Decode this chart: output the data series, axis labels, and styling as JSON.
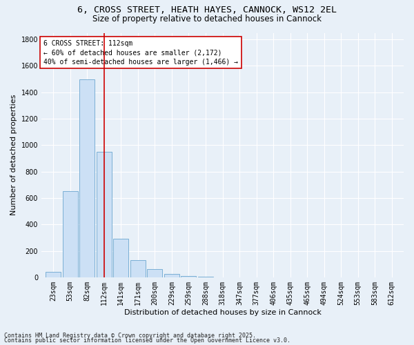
{
  "title1": "6, CROSS STREET, HEATH HAYES, CANNOCK, WS12 2EL",
  "title2": "Size of property relative to detached houses in Cannock",
  "xlabel": "Distribution of detached houses by size in Cannock",
  "ylabel": "Number of detached properties",
  "categories": [
    "23sqm",
    "53sqm",
    "82sqm",
    "112sqm",
    "141sqm",
    "171sqm",
    "200sqm",
    "229sqm",
    "259sqm",
    "288sqm",
    "318sqm",
    "347sqm",
    "377sqm",
    "406sqm",
    "435sqm",
    "465sqm",
    "494sqm",
    "524sqm",
    "553sqm",
    "583sqm",
    "612sqm"
  ],
  "values": [
    40,
    650,
    1500,
    950,
    290,
    130,
    60,
    25,
    10,
    5,
    0,
    0,
    0,
    0,
    0,
    0,
    0,
    0,
    0,
    0,
    0
  ],
  "bar_color": "#cce0f5",
  "bar_edge_color": "#7aafd4",
  "vline_x_index": 3,
  "vline_color": "#cc0000",
  "annotation_line1": "6 CROSS STREET: 112sqm",
  "annotation_line2": "← 60% of detached houses are smaller (2,172)",
  "annotation_line3": "40% of semi-detached houses are larger (1,466) →",
  "annotation_box_color": "#ffffff",
  "annotation_box_edge": "#cc0000",
  "ylim": [
    0,
    1850
  ],
  "yticks": [
    0,
    200,
    400,
    600,
    800,
    1000,
    1200,
    1400,
    1600,
    1800
  ],
  "bg_color": "#e8f0f8",
  "grid_color": "#ffffff",
  "footer1": "Contains HM Land Registry data © Crown copyright and database right 2025.",
  "footer2": "Contains public sector information licensed under the Open Government Licence v3.0.",
  "title_fontsize": 9.5,
  "subtitle_fontsize": 8.5,
  "axis_label_fontsize": 8,
  "tick_fontsize": 7,
  "annotation_fontsize": 7,
  "footer_fontsize": 6
}
